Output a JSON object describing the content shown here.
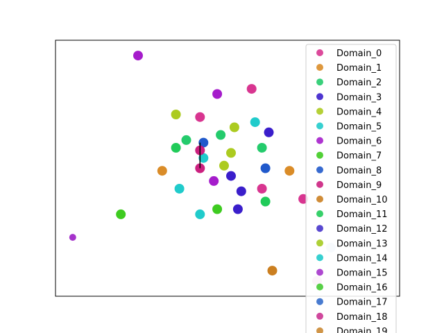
{
  "chart_data": {
    "type": "scatter",
    "title": "",
    "xlabel": "",
    "ylabel": "",
    "xlim": [
      0,
      100
    ],
    "ylim": [
      0,
      100
    ],
    "axis_ticks": false,
    "grid": false,
    "legend_position": "upper-right",
    "series": [
      {
        "name": "Domain_0",
        "color": "#d62a8a",
        "points": [
          [
            57,
            81
          ],
          [
            42,
            70
          ],
          [
            60,
            42
          ],
          [
            72,
            38
          ]
        ]
      },
      {
        "name": "Domain_1",
        "color": "#d8861c",
        "points": [
          [
            31,
            49
          ],
          [
            68,
            49
          ]
        ]
      },
      {
        "name": "Domain_2",
        "color": "#18c864",
        "points": [
          [
            38,
            61
          ],
          [
            48,
            63
          ],
          [
            60,
            58
          ]
        ]
      },
      {
        "name": "Domain_3",
        "color": "#2f12c8",
        "points": [
          [
            62,
            64
          ],
          [
            51,
            47
          ],
          [
            54,
            41
          ],
          [
            53,
            34
          ]
        ]
      },
      {
        "name": "Domain_4",
        "color": "#a8c814",
        "points": [
          [
            35,
            71
          ],
          [
            52,
            66
          ],
          [
            51,
            56
          ],
          [
            49,
            51
          ]
        ]
      },
      {
        "name": "Domain_5",
        "color": "#14c8c8",
        "points": [
          [
            58,
            68
          ],
          [
            43,
            54
          ],
          [
            36,
            42
          ],
          [
            42,
            32
          ]
        ]
      },
      {
        "name": "Domain_6",
        "color": "#a010c8",
        "points": [
          [
            24,
            94
          ],
          [
            47,
            79
          ],
          [
            46,
            45
          ]
        ]
      },
      {
        "name": "Domain_7",
        "color": "#34c814",
        "points": [
          [
            19,
            32
          ],
          [
            47,
            34
          ]
        ]
      },
      {
        "name": "Domain_8",
        "color": "#1450c8",
        "points": [
          [
            43,
            60
          ],
          [
            61,
            50
          ]
        ]
      },
      {
        "name": "Domain_9",
        "color": "#c81478",
        "points": [
          [
            42,
            57
          ],
          [
            42,
            50
          ]
        ]
      },
      {
        "name": "Domain_10",
        "color": "#c87814",
        "points": [
          [
            63,
            10
          ]
        ]
      },
      {
        "name": "Domain_11",
        "color": "#14c850",
        "points": [
          [
            35,
            58
          ],
          [
            61,
            37
          ]
        ]
      },
      {
        "name": "Domain_12",
        "color": "#3c28c8",
        "points": []
      },
      {
        "name": "Domain_13",
        "color": "#a0c814",
        "points": []
      },
      {
        "name": "Domain_14",
        "color": "#14c8c8",
        "points": []
      },
      {
        "name": "Domain_15",
        "color": "#a028c8",
        "points": [
          [
            5,
            23
          ]
        ]
      },
      {
        "name": "Domain_16",
        "color": "#3cc828",
        "points": []
      },
      {
        "name": "Domain_17",
        "color": "#2864c8",
        "points": []
      },
      {
        "name": "Domain_18",
        "color": "#c8288c",
        "points": []
      },
      {
        "name": "Domain_19",
        "color": "#c88228",
        "points": []
      }
    ],
    "extra_points": [
      {
        "color": "#c8dcf0",
        "x": 80,
        "y": 19
      },
      {
        "color": "#f0b4dc",
        "x": 76,
        "y": 6
      }
    ],
    "line_segment": {
      "color": "#000000",
      "x": [
        42,
        42
      ],
      "y": [
        60,
        50
      ]
    }
  }
}
